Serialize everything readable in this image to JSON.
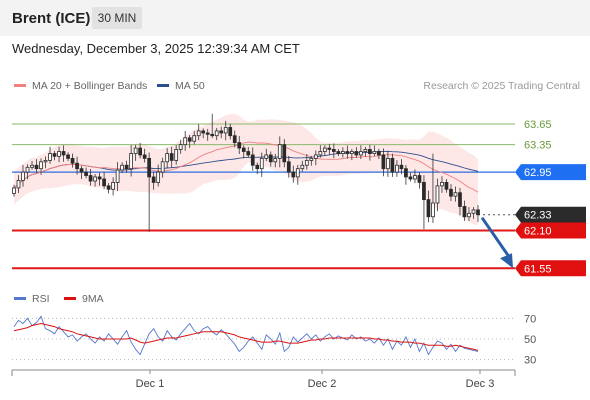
{
  "header": {
    "instrument": "Brent (ICE)",
    "timeframe": "30 MIN"
  },
  "datetime": "Wednesday, December 3, 2025 12:39:34 AM CET",
  "legend": {
    "ma20": {
      "label": "MA 20 + Bollinger Bands",
      "color": "#f08080"
    },
    "ma50": {
      "label": "MA 50",
      "color": "#2c4f8c"
    },
    "credit": "Research © 2025 Trading Central"
  },
  "rsi_legend": {
    "rsi": {
      "label": "RSI",
      "color": "#5577cc"
    },
    "ma9": {
      "label": "9MA",
      "color": "#dd1111"
    }
  },
  "chart_data": {
    "type": "candlestick",
    "ylim": [
      61.35,
      64.0
    ],
    "levels": [
      {
        "value": 63.65,
        "label": "63.65",
        "style": "resistance-green"
      },
      {
        "value": 63.35,
        "label": "63.35",
        "style": "resistance-green"
      },
      {
        "value": 62.95,
        "label": "62.95",
        "style": "pivot-blue"
      },
      {
        "value": 62.33,
        "label": "62.33",
        "style": "last-price"
      },
      {
        "value": 62.1,
        "label": "62.10",
        "style": "support-red"
      },
      {
        "value": 61.55,
        "label": "61.55",
        "style": "support-red"
      }
    ],
    "x_ticks": [
      "Dec 1",
      "Dec 2",
      "Dec 3"
    ],
    "closes": [
      62.72,
      62.83,
      62.95,
      63.02,
      63.05,
      63.0,
      63.1,
      63.12,
      63.22,
      63.18,
      63.25,
      63.2,
      63.15,
      63.08,
      63.0,
      62.95,
      62.9,
      62.82,
      62.88,
      62.85,
      62.75,
      62.7,
      62.8,
      62.98,
      63.05,
      63.0,
      63.22,
      63.3,
      63.2,
      63.15,
      62.88,
      62.8,
      62.95,
      63.1,
      63.22,
      63.12,
      63.28,
      63.35,
      63.45,
      63.4,
      63.48,
      63.55,
      63.52,
      63.5,
      63.48,
      63.55,
      63.52,
      63.6,
      63.48,
      63.38,
      63.3,
      63.25,
      63.2,
      63.05,
      63.0,
      63.15,
      63.2,
      63.1,
      63.15,
      63.35,
      63.1,
      62.95,
      62.88,
      63.0,
      63.05,
      63.12,
      63.15,
      63.2,
      63.25,
      63.3,
      63.28,
      63.25,
      63.22,
      63.25,
      63.22,
      63.25,
      63.2,
      63.25,
      63.28,
      63.22,
      63.25,
      63.2,
      63.0,
      63.15,
      62.95,
      63.05,
      63.0,
      62.88,
      62.85,
      62.9,
      62.8,
      62.55,
      62.3,
      62.5,
      62.75,
      62.8,
      62.7,
      62.6,
      62.65,
      62.45,
      62.3,
      62.35,
      62.4,
      62.33
    ],
    "rsi": {
      "ylim": [
        20,
        80
      ],
      "ticks": [
        70,
        50,
        30
      ],
      "rsi_values": [
        62,
        68,
        65,
        70,
        63,
        66,
        72,
        60,
        58,
        55,
        62,
        57,
        52,
        54,
        48,
        52,
        55,
        50,
        46,
        52,
        48,
        55,
        50,
        45,
        52,
        58,
        47,
        40,
        35,
        45,
        55,
        60,
        52,
        48,
        58,
        52,
        49,
        55,
        60,
        65,
        58,
        55,
        60,
        62,
        57,
        54,
        59,
        55,
        50,
        45,
        38,
        42,
        48,
        52,
        46,
        40,
        54,
        50,
        45,
        56,
        38,
        42,
        52,
        47,
        51,
        55,
        50,
        54,
        48,
        52,
        55,
        50,
        53,
        51,
        49,
        54,
        50,
        52,
        48,
        50,
        46,
        51,
        44,
        50,
        40,
        48,
        44,
        52,
        42,
        50,
        38,
        46,
        35,
        42,
        48,
        46,
        40,
        45,
        38,
        44,
        41,
        40,
        39,
        38
      ],
      "ma9_values": [
        58,
        59,
        60,
        61,
        63,
        64,
        65,
        64,
        63,
        62,
        60,
        59,
        58,
        57,
        55,
        54,
        53,
        52,
        51,
        50,
        50,
        50,
        50,
        50,
        50,
        50,
        51,
        49,
        47,
        46,
        47,
        48,
        49,
        50,
        51,
        51,
        51,
        52,
        53,
        54,
        55,
        56,
        57,
        57,
        57,
        57,
        57,
        56,
        55,
        54,
        52,
        51,
        50,
        49,
        48,
        47,
        47,
        47,
        48,
        48,
        47,
        46,
        46,
        46,
        47,
        48,
        49,
        49,
        50,
        50,
        51,
        51,
        51,
        51,
        51,
        51,
        51,
        51,
        51,
        51,
        50,
        50,
        49,
        49,
        48,
        48,
        47,
        47,
        47,
        46,
        46,
        45,
        44,
        44,
        44,
        44,
        43,
        43,
        44,
        43,
        42,
        41,
        40,
        39
      ]
    }
  }
}
